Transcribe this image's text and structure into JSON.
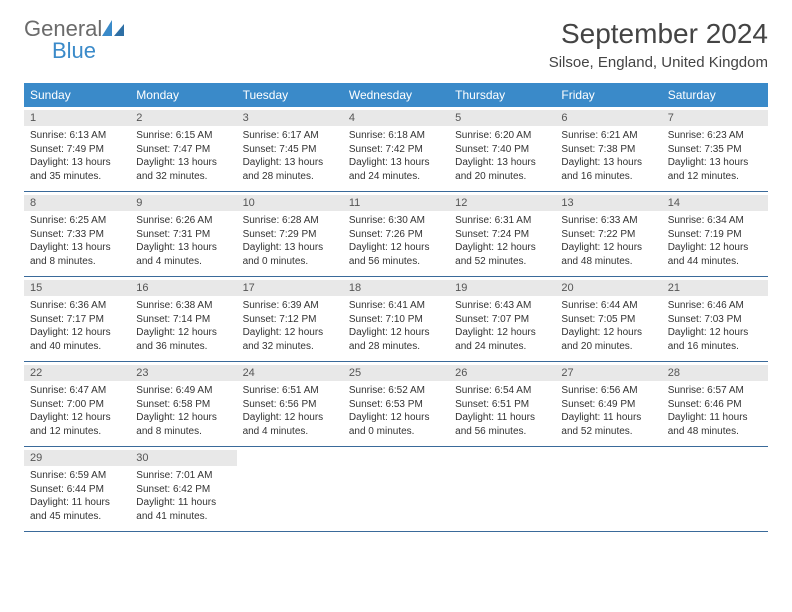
{
  "logo": {
    "text1": "General",
    "text2": "Blue"
  },
  "title": "September 2024",
  "location": "Silsoe, England, United Kingdom",
  "weekdays": [
    "Sunday",
    "Monday",
    "Tuesday",
    "Wednesday",
    "Thursday",
    "Friday",
    "Saturday"
  ],
  "colors": {
    "header_bg": "#3a8ac9",
    "header_text": "#ffffff",
    "band_bg": "#e8e8e8",
    "row_border": "#3a6a9a",
    "text": "#333333",
    "logo_gray": "#6b6b6b",
    "logo_blue": "#3a8ac9"
  },
  "days": [
    {
      "n": "1",
      "sr": "Sunrise: 6:13 AM",
      "ss": "Sunset: 7:49 PM",
      "dl1": "Daylight: 13 hours",
      "dl2": "and 35 minutes."
    },
    {
      "n": "2",
      "sr": "Sunrise: 6:15 AM",
      "ss": "Sunset: 7:47 PM",
      "dl1": "Daylight: 13 hours",
      "dl2": "and 32 minutes."
    },
    {
      "n": "3",
      "sr": "Sunrise: 6:17 AM",
      "ss": "Sunset: 7:45 PM",
      "dl1": "Daylight: 13 hours",
      "dl2": "and 28 minutes."
    },
    {
      "n": "4",
      "sr": "Sunrise: 6:18 AM",
      "ss": "Sunset: 7:42 PM",
      "dl1": "Daylight: 13 hours",
      "dl2": "and 24 minutes."
    },
    {
      "n": "5",
      "sr": "Sunrise: 6:20 AM",
      "ss": "Sunset: 7:40 PM",
      "dl1": "Daylight: 13 hours",
      "dl2": "and 20 minutes."
    },
    {
      "n": "6",
      "sr": "Sunrise: 6:21 AM",
      "ss": "Sunset: 7:38 PM",
      "dl1": "Daylight: 13 hours",
      "dl2": "and 16 minutes."
    },
    {
      "n": "7",
      "sr": "Sunrise: 6:23 AM",
      "ss": "Sunset: 7:35 PM",
      "dl1": "Daylight: 13 hours",
      "dl2": "and 12 minutes."
    },
    {
      "n": "8",
      "sr": "Sunrise: 6:25 AM",
      "ss": "Sunset: 7:33 PM",
      "dl1": "Daylight: 13 hours",
      "dl2": "and 8 minutes."
    },
    {
      "n": "9",
      "sr": "Sunrise: 6:26 AM",
      "ss": "Sunset: 7:31 PM",
      "dl1": "Daylight: 13 hours",
      "dl2": "and 4 minutes."
    },
    {
      "n": "10",
      "sr": "Sunrise: 6:28 AM",
      "ss": "Sunset: 7:29 PM",
      "dl1": "Daylight: 13 hours",
      "dl2": "and 0 minutes."
    },
    {
      "n": "11",
      "sr": "Sunrise: 6:30 AM",
      "ss": "Sunset: 7:26 PM",
      "dl1": "Daylight: 12 hours",
      "dl2": "and 56 minutes."
    },
    {
      "n": "12",
      "sr": "Sunrise: 6:31 AM",
      "ss": "Sunset: 7:24 PM",
      "dl1": "Daylight: 12 hours",
      "dl2": "and 52 minutes."
    },
    {
      "n": "13",
      "sr": "Sunrise: 6:33 AM",
      "ss": "Sunset: 7:22 PM",
      "dl1": "Daylight: 12 hours",
      "dl2": "and 48 minutes."
    },
    {
      "n": "14",
      "sr": "Sunrise: 6:34 AM",
      "ss": "Sunset: 7:19 PM",
      "dl1": "Daylight: 12 hours",
      "dl2": "and 44 minutes."
    },
    {
      "n": "15",
      "sr": "Sunrise: 6:36 AM",
      "ss": "Sunset: 7:17 PM",
      "dl1": "Daylight: 12 hours",
      "dl2": "and 40 minutes."
    },
    {
      "n": "16",
      "sr": "Sunrise: 6:38 AM",
      "ss": "Sunset: 7:14 PM",
      "dl1": "Daylight: 12 hours",
      "dl2": "and 36 minutes."
    },
    {
      "n": "17",
      "sr": "Sunrise: 6:39 AM",
      "ss": "Sunset: 7:12 PM",
      "dl1": "Daylight: 12 hours",
      "dl2": "and 32 minutes."
    },
    {
      "n": "18",
      "sr": "Sunrise: 6:41 AM",
      "ss": "Sunset: 7:10 PM",
      "dl1": "Daylight: 12 hours",
      "dl2": "and 28 minutes."
    },
    {
      "n": "19",
      "sr": "Sunrise: 6:43 AM",
      "ss": "Sunset: 7:07 PM",
      "dl1": "Daylight: 12 hours",
      "dl2": "and 24 minutes."
    },
    {
      "n": "20",
      "sr": "Sunrise: 6:44 AM",
      "ss": "Sunset: 7:05 PM",
      "dl1": "Daylight: 12 hours",
      "dl2": "and 20 minutes."
    },
    {
      "n": "21",
      "sr": "Sunrise: 6:46 AM",
      "ss": "Sunset: 7:03 PM",
      "dl1": "Daylight: 12 hours",
      "dl2": "and 16 minutes."
    },
    {
      "n": "22",
      "sr": "Sunrise: 6:47 AM",
      "ss": "Sunset: 7:00 PM",
      "dl1": "Daylight: 12 hours",
      "dl2": "and 12 minutes."
    },
    {
      "n": "23",
      "sr": "Sunrise: 6:49 AM",
      "ss": "Sunset: 6:58 PM",
      "dl1": "Daylight: 12 hours",
      "dl2": "and 8 minutes."
    },
    {
      "n": "24",
      "sr": "Sunrise: 6:51 AM",
      "ss": "Sunset: 6:56 PM",
      "dl1": "Daylight: 12 hours",
      "dl2": "and 4 minutes."
    },
    {
      "n": "25",
      "sr": "Sunrise: 6:52 AM",
      "ss": "Sunset: 6:53 PM",
      "dl1": "Daylight: 12 hours",
      "dl2": "and 0 minutes."
    },
    {
      "n": "26",
      "sr": "Sunrise: 6:54 AM",
      "ss": "Sunset: 6:51 PM",
      "dl1": "Daylight: 11 hours",
      "dl2": "and 56 minutes."
    },
    {
      "n": "27",
      "sr": "Sunrise: 6:56 AM",
      "ss": "Sunset: 6:49 PM",
      "dl1": "Daylight: 11 hours",
      "dl2": "and 52 minutes."
    },
    {
      "n": "28",
      "sr": "Sunrise: 6:57 AM",
      "ss": "Sunset: 6:46 PM",
      "dl1": "Daylight: 11 hours",
      "dl2": "and 48 minutes."
    },
    {
      "n": "29",
      "sr": "Sunrise: 6:59 AM",
      "ss": "Sunset: 6:44 PM",
      "dl1": "Daylight: 11 hours",
      "dl2": "and 45 minutes."
    },
    {
      "n": "30",
      "sr": "Sunrise: 7:01 AM",
      "ss": "Sunset: 6:42 PM",
      "dl1": "Daylight: 11 hours",
      "dl2": "and 41 minutes."
    }
  ]
}
